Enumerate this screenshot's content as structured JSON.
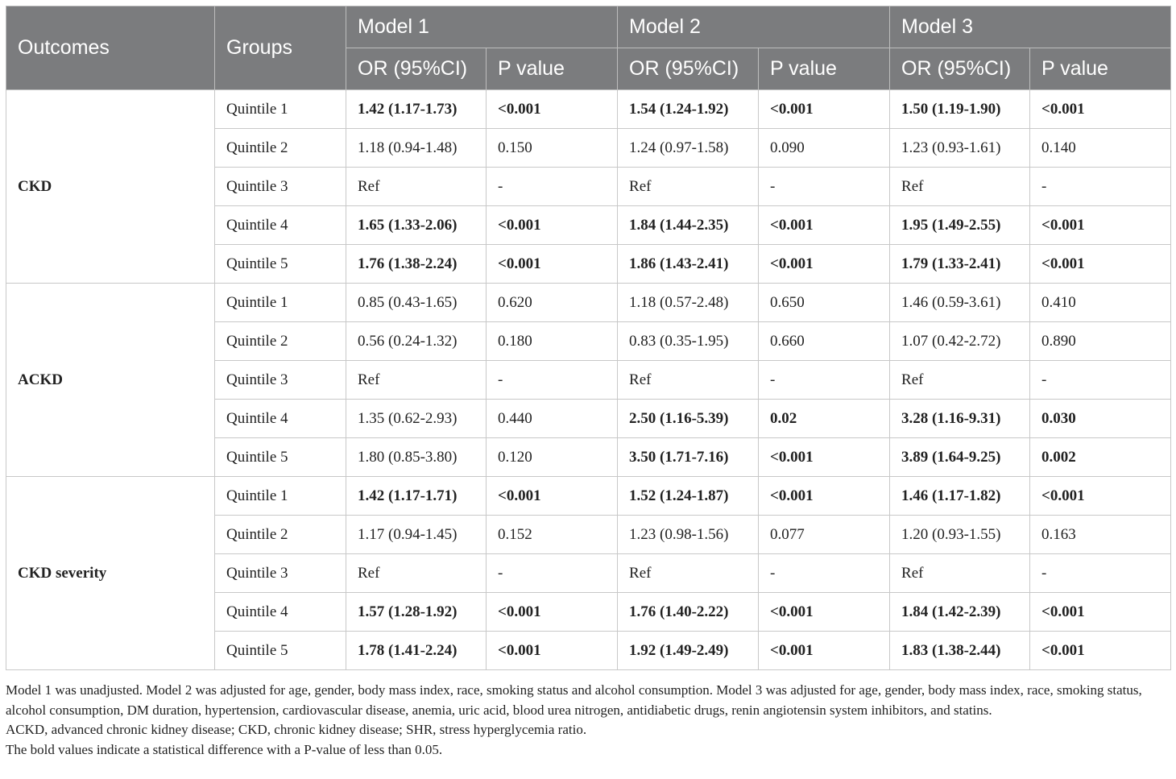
{
  "header": {
    "outcomes": "Outcomes",
    "groups": "Groups",
    "models": [
      "Model 1",
      "Model 2",
      "Model 3"
    ],
    "or_label": "OR (95%CI)",
    "p_label": "P value"
  },
  "sections": [
    {
      "outcome": "CKD",
      "rows": [
        {
          "group": "Quintile 1",
          "cells": [
            [
              "1.42 (1.17-1.73)",
              true
            ],
            [
              "<0.001",
              true
            ],
            [
              "1.54 (1.24-1.92)",
              true
            ],
            [
              "<0.001",
              true
            ],
            [
              "1.50 (1.19-1.90)",
              true
            ],
            [
              "<0.001",
              true
            ]
          ]
        },
        {
          "group": "Quintile 2",
          "cells": [
            [
              "1.18 (0.94-1.48)",
              false
            ],
            [
              "0.150",
              false
            ],
            [
              "1.24 (0.97-1.58)",
              false
            ],
            [
              "0.090",
              false
            ],
            [
              "1.23 (0.93-1.61)",
              false
            ],
            [
              "0.140",
              false
            ]
          ]
        },
        {
          "group": "Quintile 3",
          "cells": [
            [
              "Ref",
              false
            ],
            [
              "-",
              false
            ],
            [
              "Ref",
              false
            ],
            [
              "-",
              false
            ],
            [
              "Ref",
              false
            ],
            [
              "-",
              false
            ]
          ]
        },
        {
          "group": "Quintile 4",
          "cells": [
            [
              "1.65 (1.33-2.06)",
              true
            ],
            [
              "<0.001",
              true
            ],
            [
              "1.84 (1.44-2.35)",
              true
            ],
            [
              "<0.001",
              true
            ],
            [
              "1.95 (1.49-2.55)",
              true
            ],
            [
              "<0.001",
              true
            ]
          ]
        },
        {
          "group": "Quintile 5",
          "cells": [
            [
              "1.76 (1.38-2.24)",
              true
            ],
            [
              "<0.001",
              true
            ],
            [
              "1.86 (1.43-2.41)",
              true
            ],
            [
              "<0.001",
              true
            ],
            [
              "1.79 (1.33-2.41)",
              true
            ],
            [
              "<0.001",
              true
            ]
          ]
        }
      ]
    },
    {
      "outcome": "ACKD",
      "rows": [
        {
          "group": "Quintile 1",
          "cells": [
            [
              "0.85 (0.43-1.65)",
              false
            ],
            [
              "0.620",
              false
            ],
            [
              "1.18 (0.57-2.48)",
              false
            ],
            [
              "0.650",
              false
            ],
            [
              "1.46 (0.59-3.61)",
              false
            ],
            [
              "0.410",
              false
            ]
          ]
        },
        {
          "group": "Quintile 2",
          "cells": [
            [
              "0.56 (0.24-1.32)",
              false
            ],
            [
              "0.180",
              false
            ],
            [
              "0.83 (0.35-1.95)",
              false
            ],
            [
              "0.660",
              false
            ],
            [
              "1.07 (0.42-2.72)",
              false
            ],
            [
              "0.890",
              false
            ]
          ]
        },
        {
          "group": "Quintile 3",
          "cells": [
            [
              "Ref",
              false
            ],
            [
              "-",
              false
            ],
            [
              "Ref",
              false
            ],
            [
              "-",
              false
            ],
            [
              "Ref",
              false
            ],
            [
              "-",
              false
            ]
          ]
        },
        {
          "group": "Quintile 4",
          "cells": [
            [
              "1.35 (0.62-2.93)",
              false
            ],
            [
              "0.440",
              false
            ],
            [
              "2.50 (1.16-5.39)",
              true
            ],
            [
              "0.02",
              true
            ],
            [
              "3.28 (1.16-9.31)",
              true
            ],
            [
              "0.030",
              true
            ]
          ]
        },
        {
          "group": "Quintile 5",
          "cells": [
            [
              "1.80 (0.85-3.80)",
              false
            ],
            [
              "0.120",
              false
            ],
            [
              "3.50 (1.71-7.16)",
              true
            ],
            [
              "<0.001",
              true
            ],
            [
              "3.89 (1.64-9.25)",
              true
            ],
            [
              "0.002",
              true
            ]
          ]
        }
      ]
    },
    {
      "outcome": "CKD severity",
      "rows": [
        {
          "group": "Quintile 1",
          "cells": [
            [
              "1.42 (1.17-1.71)",
              true
            ],
            [
              "<0.001",
              true
            ],
            [
              "1.52 (1.24-1.87)",
              true
            ],
            [
              "<0.001",
              true
            ],
            [
              "1.46 (1.17-1.82)",
              true
            ],
            [
              "<0.001",
              true
            ]
          ]
        },
        {
          "group": "Quintile 2",
          "cells": [
            [
              "1.17 (0.94-1.45)",
              false
            ],
            [
              "0.152",
              false
            ],
            [
              "1.23 (0.98-1.56)",
              false
            ],
            [
              "0.077",
              false
            ],
            [
              "1.20 (0.93-1.55)",
              false
            ],
            [
              "0.163",
              false
            ]
          ]
        },
        {
          "group": "Quintile 3",
          "cells": [
            [
              "Ref",
              false
            ],
            [
              "-",
              false
            ],
            [
              "Ref",
              false
            ],
            [
              "-",
              false
            ],
            [
              "Ref",
              false
            ],
            [
              "-",
              false
            ]
          ]
        },
        {
          "group": "Quintile 4",
          "cells": [
            [
              "1.57 (1.28-1.92)",
              true
            ],
            [
              "<0.001",
              true
            ],
            [
              "1.76 (1.40-2.22)",
              true
            ],
            [
              "<0.001",
              true
            ],
            [
              "1.84 (1.42-2.39)",
              true
            ],
            [
              "<0.001",
              true
            ]
          ]
        },
        {
          "group": "Quintile 5",
          "cells": [
            [
              "1.78 (1.41-2.24)",
              true
            ],
            [
              "<0.001",
              true
            ],
            [
              "1.92 (1.49-2.49)",
              true
            ],
            [
              "<0.001",
              true
            ],
            [
              "1.83 (1.38-2.44)",
              true
            ],
            [
              "<0.001",
              true
            ]
          ]
        }
      ]
    }
  ],
  "footnotes": [
    "Model 1 was unadjusted. Model 2 was adjusted for age, gender, body mass index, race, smoking status and alcohol consumption. Model 3 was adjusted for age, gender, body mass index, race, smoking status, alcohol consumption, DM duration, hypertension, cardiovascular disease, anemia, uric acid, blood urea nitrogen, antidiabetic drugs, renin angiotensin system inhibitors, and statins.",
    "ACKD, advanced chronic kidney disease; CKD, chronic kidney disease; SHR, stress hyperglycemia ratio.",
    "The bold values indicate a statistical difference with a P-value of less than 0.05."
  ]
}
